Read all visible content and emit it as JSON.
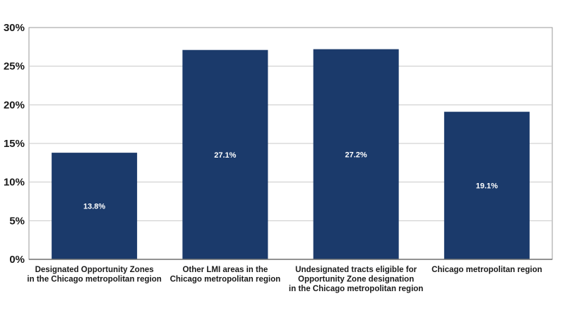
{
  "chart_data": {
    "type": "bar",
    "title": "",
    "xlabel": "",
    "ylabel": "",
    "ylim": [
      0,
      30
    ],
    "yticks": [
      "0%",
      "5%",
      "10%",
      "15%",
      "20%",
      "25%",
      "30%"
    ],
    "grid": true,
    "legend": "none",
    "categories": [
      [
        "Designated Opportunity Zones",
        "in the Chicago metropolitan region"
      ],
      [
        "Other LMI areas in the",
        "Chicago metropolitan region"
      ],
      [
        "Undesignated tracts eligible for",
        "Opportunity Zone designation",
        "in the Chicago metropolitan region"
      ],
      [
        "Chicago metropolitan region"
      ]
    ],
    "values": [
      13.8,
      27.1,
      27.2,
      19.1
    ],
    "data_labels": [
      "13.8%",
      "27.1%",
      "27.2%",
      "19.1%"
    ],
    "bar_color": "#1b3a6b",
    "grid_color": "#c8c8c8",
    "axis_color": "#9a9a9a"
  }
}
